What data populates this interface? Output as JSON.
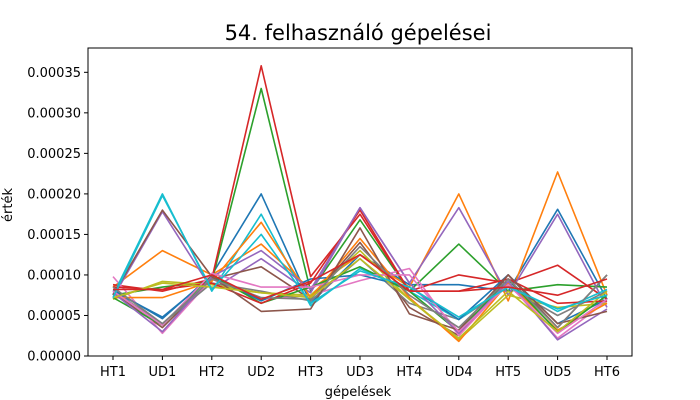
{
  "chart_data": {
    "type": "line",
    "title": "54. felhasználó gépelései",
    "xlabel": "gépelések",
    "ylabel": "érték",
    "categories": [
      "HT1",
      "UD1",
      "HT2",
      "UD2",
      "HT3",
      "UD3",
      "HT4",
      "UD4",
      "HT5",
      "UD5",
      "HT6"
    ],
    "ylim": [
      0,
      0.00038
    ],
    "yticks": [
      0,
      5e-05,
      0.0001,
      0.00015,
      0.0002,
      0.00025,
      0.0003,
      0.00035
    ],
    "ytick_labels": [
      "0.00000",
      "0.00005",
      "0.00010",
      "0.00015",
      "0.00020",
      "0.00025",
      "0.00030",
      "0.00035"
    ],
    "grid": false,
    "series": [
      {
        "color": "#1f77b4",
        "values": [
          8.2e-05,
          4.6e-05,
          0.0001,
          0.0002,
          6.5e-05,
          0.000125,
          8.8e-05,
          8.8e-05,
          8e-05,
          0.000181,
          7e-05
        ]
      },
      {
        "color": "#ff7f0e",
        "values": [
          8.5e-05,
          0.00013,
          0.0001,
          0.000138,
          8.2e-05,
          0.000125,
          8.5e-05,
          0.0002,
          6.8e-05,
          0.000227,
          7.5e-05
        ]
      },
      {
        "color": "#2ca02c",
        "values": [
          7.5e-05,
          8.5e-05,
          9.2e-05,
          0.00033,
          8e-05,
          0.000168,
          8e-05,
          0.000138,
          8e-05,
          8.8e-05,
          8.5e-05
        ]
      },
      {
        "color": "#d62728",
        "values": [
          8.8e-05,
          8e-05,
          9.5e-05,
          0.000358,
          9.8e-05,
          0.000175,
          8e-05,
          0.0001,
          9e-05,
          0.000112,
          7e-05
        ]
      },
      {
        "color": "#9467bd",
        "values": [
          7.2e-05,
          0.000178,
          8.2e-05,
          0.00012,
          7.8e-05,
          0.000183,
          9e-05,
          0.000183,
          7.5e-05,
          0.000175,
          6e-05
        ]
      },
      {
        "color": "#8c564b",
        "values": [
          7.8e-05,
          3.5e-05,
          9.5e-05,
          0.00011,
          7e-05,
          0.00014,
          6e-05,
          2.5e-05,
          0.0001,
          3.5e-05,
          0.0001
        ]
      },
      {
        "color": "#e377c2",
        "values": [
          9.8e-05,
          2.8e-05,
          9.5e-05,
          7e-05,
          7.5e-05,
          9.3e-05,
          0.000108,
          2.5e-05,
          9e-05,
          2.2e-05,
          6.8e-05
        ]
      },
      {
        "color": "#7f7f7f",
        "values": [
          8e-05,
          4e-05,
          9e-05,
          8e-05,
          6.8e-05,
          0.00012,
          6.5e-05,
          4.5e-05,
          8.5e-05,
          5e-05,
          8e-05
        ]
      },
      {
        "color": "#bcbd22",
        "values": [
          7e-05,
          9.2e-05,
          8.8e-05,
          7.8e-05,
          7.5e-05,
          0.00013,
          7e-05,
          2e-05,
          7.5e-05,
          6e-05,
          6.5e-05
        ]
      },
      {
        "color": "#17becf",
        "values": [
          7.5e-05,
          0.0002,
          8e-05,
          0.000175,
          6.2e-05,
          0.000108,
          8e-05,
          4.5e-05,
          8.8e-05,
          5.5e-05,
          8.2e-05
        ]
      },
      {
        "color": "#1f77b4",
        "values": [
          8e-05,
          4.8e-05,
          9.8e-05,
          6.8e-05,
          9.5e-05,
          0.0001,
          8.5e-05,
          4.5e-05,
          0.0001,
          4e-05,
          7e-05
        ]
      },
      {
        "color": "#ff7f0e",
        "values": [
          7.2e-05,
          7.2e-05,
          9.2e-05,
          0.000165,
          7.2e-05,
          0.000145,
          7.2e-05,
          1.8e-05,
          9e-05,
          3.2e-05,
          6.5e-05
        ]
      },
      {
        "color": "#2ca02c",
        "values": [
          7.2e-05,
          3.8e-05,
          0.0001,
          6.5e-05,
          8.5e-05,
          0.00011,
          8e-05,
          3e-05,
          9.5e-05,
          3e-05,
          7.5e-05
        ]
      },
      {
        "color": "#d62728",
        "values": [
          8.5e-05,
          8.2e-05,
          9e-05,
          6.5e-05,
          9e-05,
          0.00018,
          8e-05,
          8e-05,
          9.5e-05,
          6.5e-05,
          6.8e-05
        ]
      },
      {
        "color": "#9467bd",
        "values": [
          7.8e-05,
          3e-05,
          9.8e-05,
          0.00013,
          8.2e-05,
          0.000183,
          9e-05,
          2.8e-05,
          9.2e-05,
          2e-05,
          5.8e-05
        ]
      },
      {
        "color": "#8c564b",
        "values": [
          7.5e-05,
          0.00018,
          9.8e-05,
          5.5e-05,
          5.8e-05,
          0.000158,
          5.2e-05,
          3.2e-05,
          0.0001,
          4e-05,
          5.5e-05
        ]
      },
      {
        "color": "#e377c2",
        "values": [
          8e-05,
          3.8e-05,
          0.000102,
          8.5e-05,
          8.5e-05,
          0.0001,
          0.0001,
          3e-05,
          8.8e-05,
          2.8e-05,
          7e-05
        ]
      },
      {
        "color": "#7f7f7f",
        "values": [
          8.5e-05,
          4e-05,
          9.5e-05,
          7.2e-05,
          7e-05,
          0.000135,
          7.5e-05,
          3.5e-05,
          9.5e-05,
          3.5e-05,
          0.0001
        ]
      },
      {
        "color": "#bcbd22",
        "values": [
          7.2e-05,
          9e-05,
          8.5e-05,
          7.8e-05,
          7.2e-05,
          0.00012,
          7e-05,
          2.2e-05,
          8e-05,
          3e-05,
          8e-05
        ]
      },
      {
        "color": "#17becf",
        "values": [
          7.2e-05,
          0.000198,
          8.2e-05,
          0.00015,
          6.5e-05,
          0.000105,
          8.5e-05,
          4.8e-05,
          8.5e-05,
          5.8e-05,
          7.5e-05
        ]
      },
      {
        "color": "#d62728",
        "values": [
          8.2e-05,
          8.2e-05,
          0.0001,
          7e-05,
          9.2e-05,
          0.000125,
          8e-05,
          8e-05,
          8.5e-05,
          7.5e-05,
          9.5e-05
        ]
      }
    ]
  }
}
